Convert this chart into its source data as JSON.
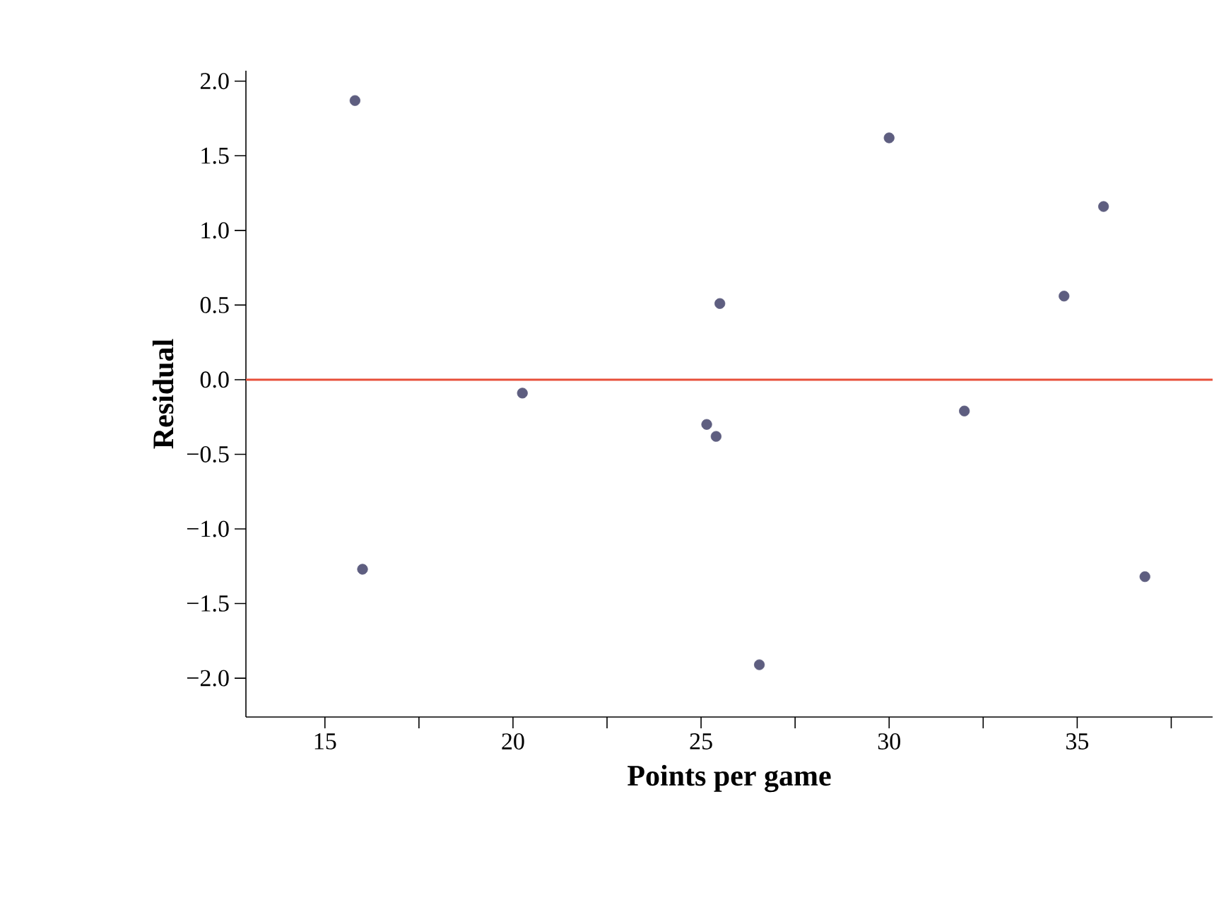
{
  "chart_data": {
    "type": "scatter",
    "xlabel": "Points per game",
    "ylabel": "Residual",
    "x": [
      15.8,
      16.0,
      20.25,
      25.15,
      25.4,
      25.5,
      26.55,
      30.0,
      32.0,
      34.65,
      35.7,
      36.8
    ],
    "series": [
      {
        "color": "#5e5e80",
        "values": [
          1.87,
          -1.27,
          -0.09,
          -0.3,
          -0.38,
          0.51,
          -1.91,
          1.62,
          -0.21,
          0.56,
          1.16,
          -1.32
        ]
      }
    ],
    "marker": "circle",
    "grid": false,
    "xlim": [
      12.9,
      38.6
    ],
    "ylim": [
      -2.26,
      2.07
    ],
    "xticks": [
      15,
      {
        "value": 17.5,
        "label": null
      },
      20,
      {
        "value": 22.5,
        "label": null
      },
      25,
      {
        "value": 27.5,
        "label": null
      },
      30,
      {
        "value": 32.5,
        "label": null
      },
      35,
      {
        "value": 37.5,
        "label": null
      }
    ],
    "yticks": [
      {
        "value": 2,
        "label": "2.0"
      },
      {
        "value": 1.5,
        "label": "1.5"
      },
      {
        "value": 1,
        "label": "1.0"
      },
      {
        "value": 0.5,
        "label": "0.5"
      },
      {
        "value": 0,
        "label": "0.0"
      },
      {
        "value": -0.5,
        "label": "−0.5"
      },
      {
        "value": -1,
        "label": "−1.0"
      },
      {
        "value": -1.5,
        "label": "−1.5"
      },
      {
        "value": -2,
        "label": "−2.0"
      }
    ],
    "ref_lines": [
      {
        "axis": "y",
        "value": 0,
        "color": "#e8503a"
      }
    ]
  }
}
